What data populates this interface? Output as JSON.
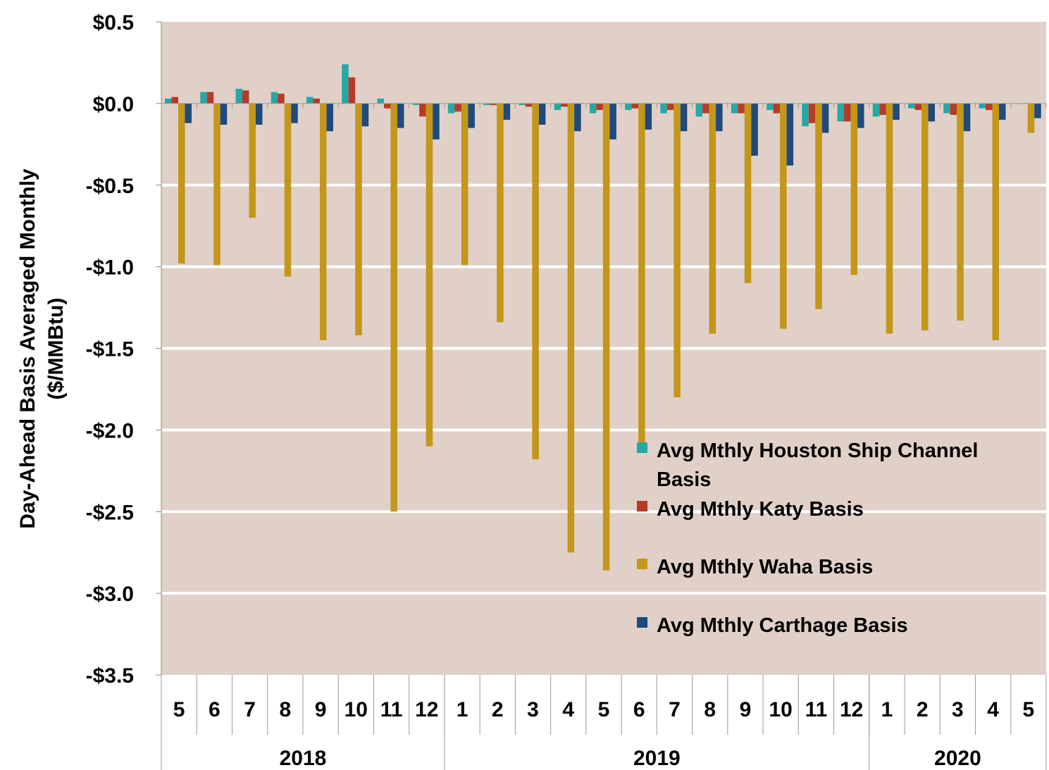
{
  "chart_data": {
    "type": "bar",
    "ylabel_line1": "Day-Ahead Basis Averaged Monthly",
    "ylabel_line2": "($/MMBtu)",
    "ylim": [
      -3.5,
      0.5
    ],
    "yticks": [
      0.5,
      0.0,
      -0.5,
      -1.0,
      -1.5,
      -2.0,
      -2.5,
      -3.0,
      -3.5
    ],
    "ytick_labels": [
      "$0.5",
      "$0.0",
      "-$0.5",
      "-$1.0",
      "-$1.5",
      "-$2.0",
      "-$2.5",
      "-$3.0",
      "-$3.5"
    ],
    "grid": true,
    "legend_position": "right",
    "plot_background": "#e0d0c7",
    "categories": [
      "5",
      "6",
      "7",
      "8",
      "9",
      "10",
      "11",
      "12",
      "1",
      "2",
      "3",
      "4",
      "5",
      "6",
      "7",
      "8",
      "9",
      "10",
      "11",
      "12",
      "1",
      "2",
      "3",
      "4",
      "5"
    ],
    "year_groups": [
      {
        "label": "2018",
        "count": 8
      },
      {
        "label": "2019",
        "count": 12
      },
      {
        "label": "2020",
        "count": 5
      }
    ],
    "series": [
      {
        "name": "Avg Mthly Houston Ship Channel Basis",
        "color": "#26a8a4",
        "values": [
          0.03,
          0.07,
          0.09,
          0.07,
          0.04,
          0.24,
          0.03,
          -0.01,
          -0.06,
          -0.01,
          -0.01,
          -0.04,
          -0.06,
          -0.04,
          -0.06,
          -0.08,
          -0.06,
          -0.04,
          -0.14,
          -0.11,
          -0.08,
          -0.03,
          -0.06,
          -0.03,
          0.0
        ]
      },
      {
        "name": "Avg Mthly Katy Basis",
        "color": "#b83a26",
        "values": [
          0.04,
          0.07,
          0.08,
          0.06,
          0.03,
          0.16,
          -0.03,
          -0.08,
          -0.05,
          -0.01,
          -0.02,
          -0.02,
          -0.04,
          -0.03,
          -0.04,
          -0.06,
          -0.06,
          -0.06,
          -0.12,
          -0.11,
          -0.07,
          -0.04,
          -0.07,
          -0.04,
          0.0
        ]
      },
      {
        "name": "Avg Mthly Waha Basis",
        "color": "#c4961a",
        "values": [
          -0.98,
          -0.99,
          -0.7,
          -1.06,
          -1.45,
          -1.42,
          -2.5,
          -2.1,
          -0.99,
          -1.34,
          -2.18,
          -2.75,
          -2.86,
          -2.1,
          -1.8,
          -1.41,
          -1.1,
          -1.38,
          -1.26,
          -1.05,
          -1.41,
          -1.39,
          -1.33,
          -1.45,
          -0.18
        ]
      },
      {
        "name": "Avg Mthly Carthage Basis",
        "color": "#1f4a7c",
        "values": [
          -0.12,
          -0.13,
          -0.13,
          -0.12,
          -0.17,
          -0.14,
          -0.15,
          -0.22,
          -0.15,
          -0.1,
          -0.13,
          -0.17,
          -0.22,
          -0.16,
          -0.17,
          -0.17,
          -0.32,
          -0.38,
          -0.18,
          -0.15,
          -0.1,
          -0.11,
          -0.17,
          -0.1,
          -0.09
        ]
      }
    ]
  },
  "legend": {
    "items": [
      {
        "lines": [
          "Avg Mthly Houston Ship Channel",
          "Basis"
        ],
        "color": "#26a8a4"
      },
      {
        "lines": [
          "Avg Mthly Katy Basis"
        ],
        "color": "#b83a26"
      },
      {
        "lines": [
          "Avg Mthly Waha Basis"
        ],
        "color": "#c4961a"
      },
      {
        "lines": [
          "Avg Mthly Carthage Basis"
        ],
        "color": "#1f4a7c"
      }
    ]
  }
}
